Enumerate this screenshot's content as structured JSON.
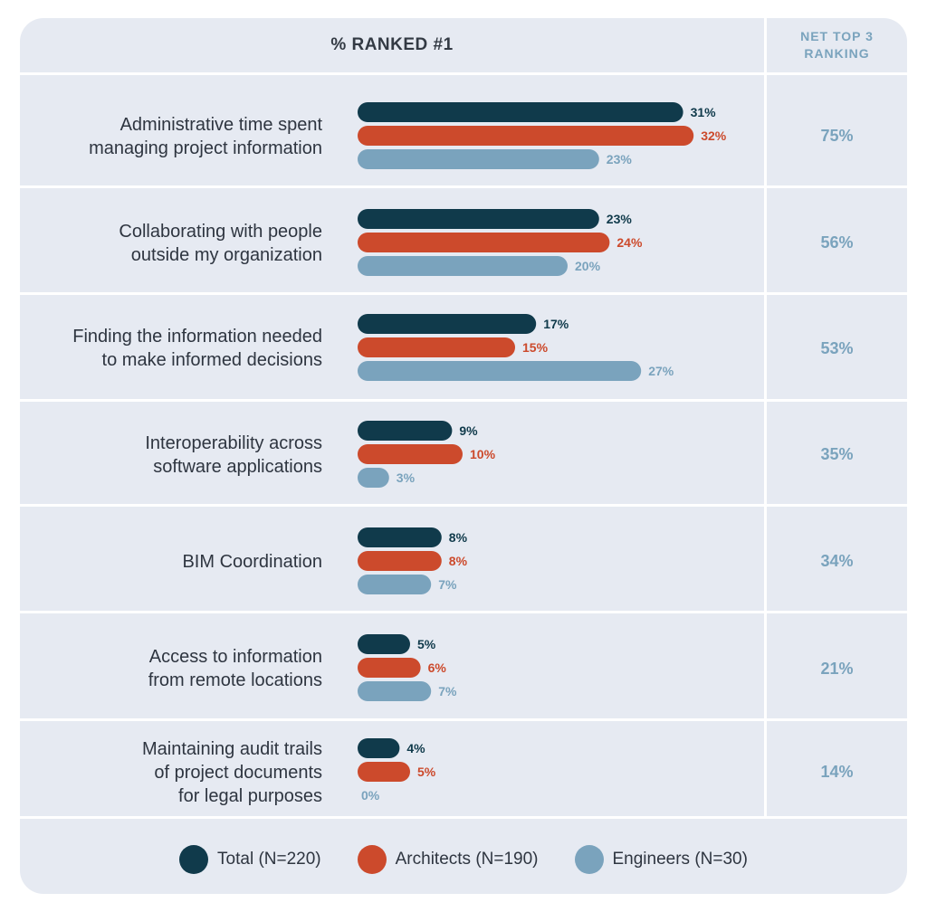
{
  "header": {
    "title": "% RANKED #1",
    "net_line1": "NET TOP 3",
    "net_line2": "RANKING"
  },
  "colors": {
    "total": "#103a4b",
    "architects": "#cc4a2c",
    "engineers": "#7aa3bd",
    "background": "#e6eaf2"
  },
  "chart_data": {
    "type": "bar",
    "orientation": "horizontal",
    "title": "% RANKED #1",
    "categories": [
      [
        "Administrative time spent",
        "managing project information"
      ],
      [
        "Collaborating with people",
        "outside my organization"
      ],
      [
        "Finding the information needed",
        "to make informed decisions"
      ],
      [
        "Interoperability across",
        "software applications"
      ],
      [
        "BIM Coordination"
      ],
      [
        "Access to information",
        "from remote locations"
      ],
      [
        "Maintaining audit trails",
        "of project documents",
        "for legal purposes"
      ]
    ],
    "series": [
      {
        "name": "Total (N=220)",
        "values": [
          31,
          23,
          17,
          9,
          8,
          5,
          4
        ],
        "labels": [
          "31%",
          "23%",
          "17%",
          "9%",
          "8%",
          "5%",
          "4%"
        ]
      },
      {
        "name": "Architects (N=190)",
        "values": [
          32,
          24,
          15,
          10,
          8,
          6,
          5
        ],
        "labels": [
          "32%",
          "24%",
          "15%",
          "10%",
          "8%",
          "6%",
          "5%"
        ]
      },
      {
        "name": "Engineers (N=30)",
        "values": [
          23,
          20,
          27,
          3,
          7,
          7,
          0
        ],
        "labels": [
          "23%",
          "20%",
          "27%",
          "3%",
          "7%",
          "7%",
          "0%"
        ]
      }
    ],
    "net_top3": [
      "75%",
      "56%",
      "53%",
      "35%",
      "34%",
      "21%",
      "14%"
    ],
    "legend_position": "bottom"
  }
}
